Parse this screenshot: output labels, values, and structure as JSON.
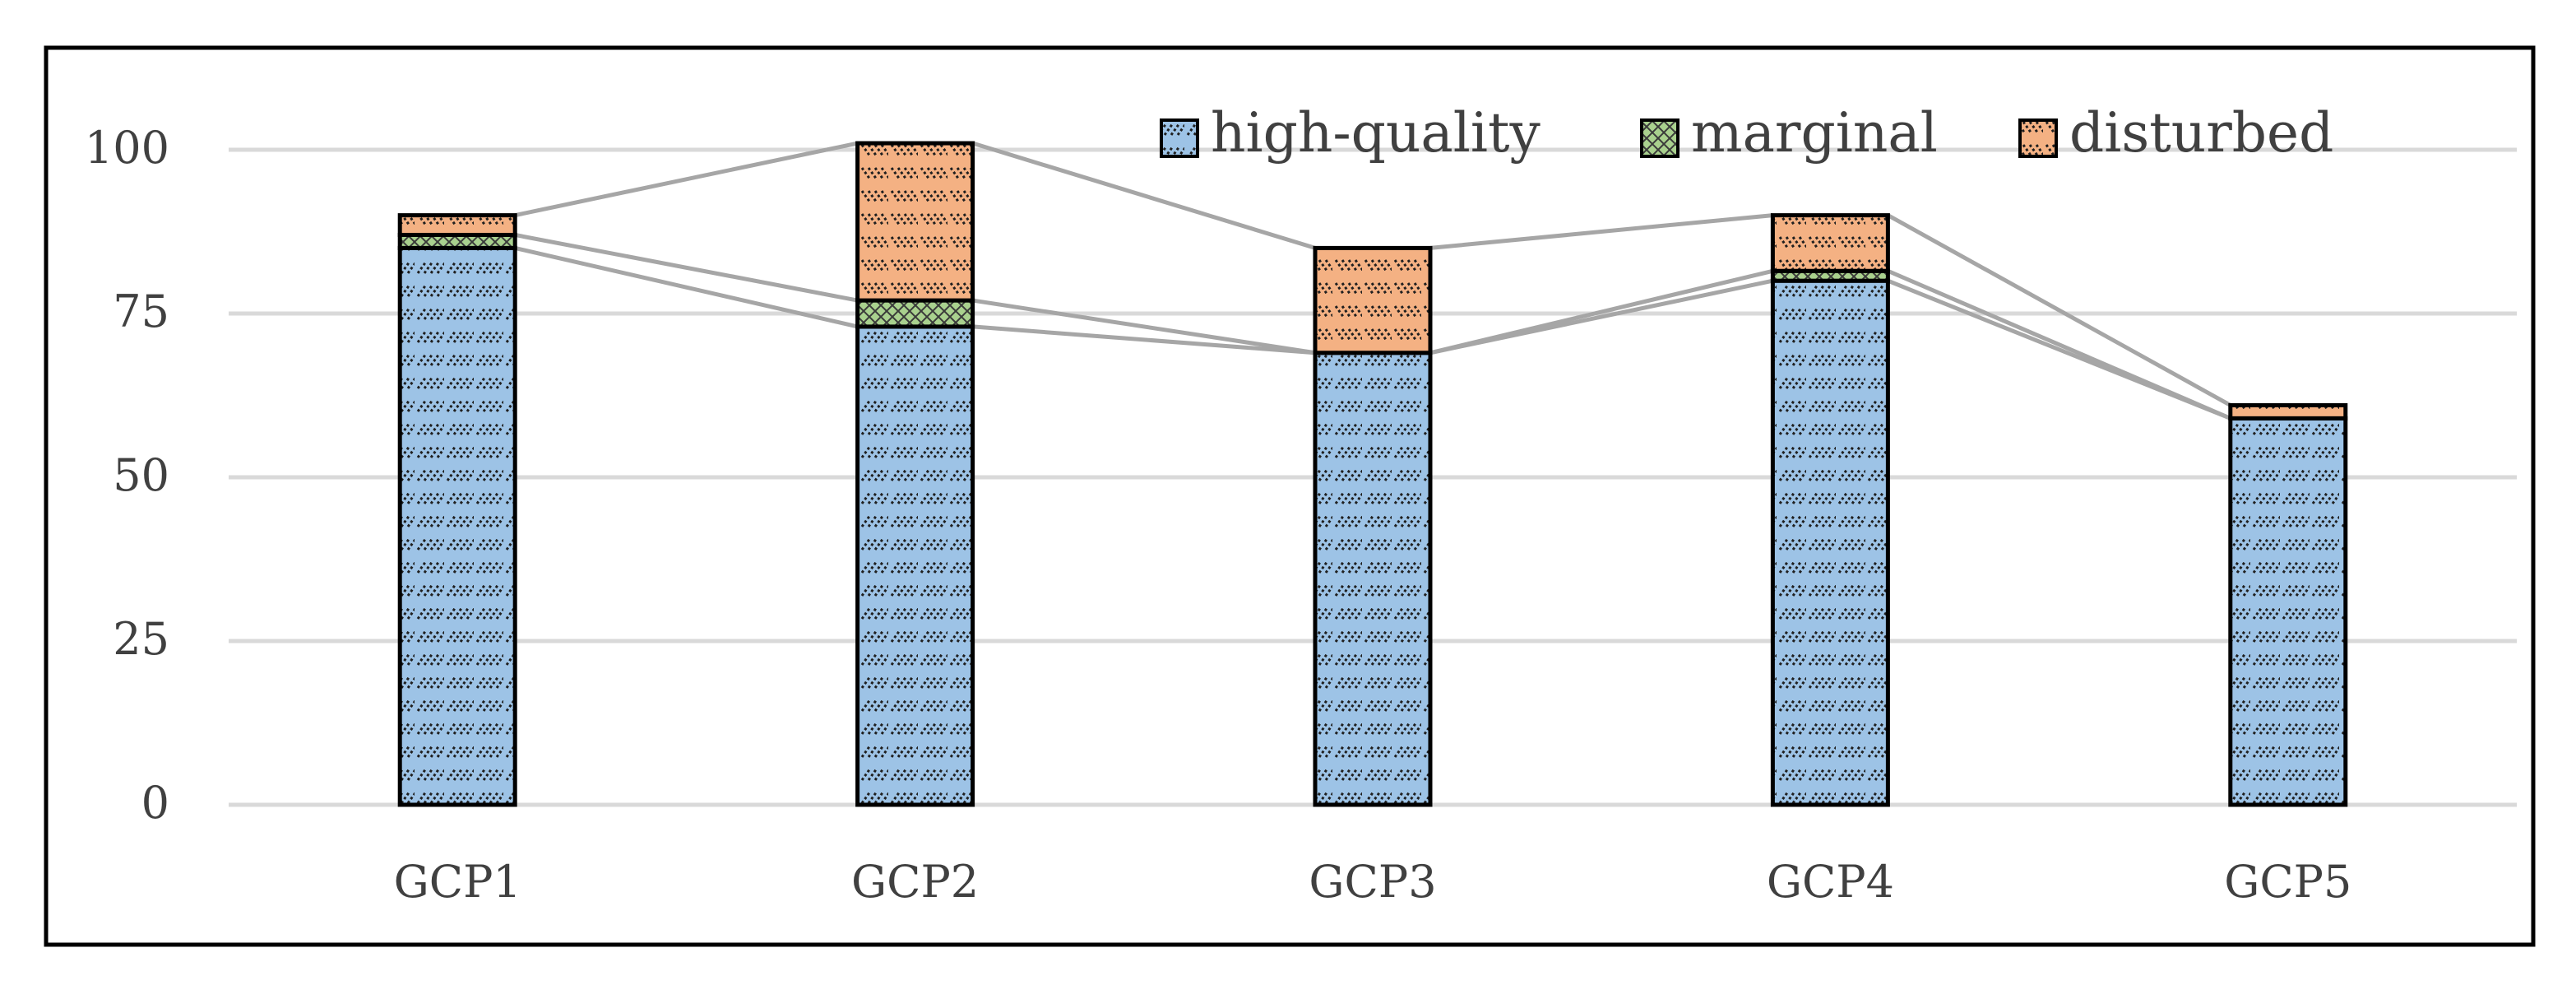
{
  "chart_data": {
    "type": "bar",
    "stacked": true,
    "title": "",
    "xlabel": "",
    "ylabel": "",
    "ylim": [
      0,
      110
    ],
    "yticks": [
      0,
      25,
      50,
      75,
      100
    ],
    "grid": true,
    "legend_position": "top-right",
    "categories": [
      "GCP1",
      "GCP2",
      "GCP3",
      "GCP4",
      "GCP5"
    ],
    "series": [
      {
        "name": "high-quality",
        "values": [
          85,
          73,
          69,
          80,
          59
        ]
      },
      {
        "name": "marginal",
        "values": [
          2,
          4,
          0,
          1.5,
          0
        ]
      },
      {
        "name": "disturbed",
        "values": [
          3,
          24,
          16,
          8.5,
          2
        ]
      }
    ],
    "colors": {
      "high-quality": "#9dc3e6",
      "marginal": "#a9d18e",
      "disturbed": "#f4b183",
      "connector": "#a6a6a6",
      "gridline": "#d9d9d9",
      "outline": "#000000",
      "text": "#404040"
    }
  }
}
